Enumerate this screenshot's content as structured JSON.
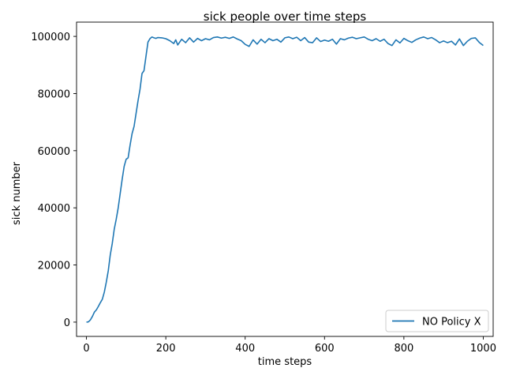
{
  "chart_data": {
    "type": "line",
    "title": "sick people over time steps",
    "xlabel": "time steps",
    "ylabel": "sick number",
    "xlim": [
      -25,
      1025
    ],
    "ylim": [
      -5000,
      105000
    ],
    "xticks": [
      0,
      200,
      400,
      600,
      800,
      1000
    ],
    "yticks": [
      0,
      20000,
      40000,
      60000,
      80000,
      100000
    ],
    "legend_position": "lower-right",
    "grid": false,
    "series": [
      {
        "name": "NO Policy X",
        "color": "#1f77b4",
        "x": [
          0,
          5,
          10,
          15,
          20,
          25,
          30,
          35,
          40,
          45,
          50,
          55,
          60,
          65,
          70,
          75,
          80,
          85,
          90,
          95,
          100,
          105,
          110,
          115,
          120,
          125,
          130,
          135,
          140,
          145,
          150,
          155,
          160,
          165,
          170,
          175,
          180,
          190,
          200,
          210,
          220,
          225,
          230,
          240,
          250,
          260,
          270,
          280,
          290,
          300,
          310,
          320,
          330,
          340,
          350,
          360,
          370,
          380,
          390,
          400,
          410,
          420,
          430,
          440,
          450,
          460,
          470,
          480,
          490,
          500,
          510,
          520,
          530,
          540,
          550,
          560,
          570,
          580,
          590,
          600,
          610,
          620,
          630,
          640,
          650,
          660,
          670,
          680,
          690,
          700,
          710,
          720,
          730,
          740,
          750,
          760,
          770,
          780,
          790,
          800,
          810,
          820,
          830,
          840,
          850,
          860,
          870,
          880,
          890,
          900,
          910,
          920,
          930,
          940,
          950,
          960,
          970,
          980,
          990,
          1000
        ],
        "y": [
          0,
          100,
          800,
          2000,
          3500,
          4300,
          5500,
          6800,
          8000,
          10500,
          14000,
          18000,
          23500,
          27500,
          32500,
          36000,
          40000,
          45000,
          50000,
          54500,
          57000,
          57500,
          62000,
          66000,
          68500,
          73000,
          77500,
          81500,
          87000,
          88000,
          93000,
          98000,
          99200,
          99800,
          99500,
          99300,
          99600,
          99500,
          99200,
          98500,
          97500,
          98800,
          97000,
          99000,
          97800,
          99500,
          98000,
          99300,
          98500,
          99200,
          98800,
          99600,
          99800,
          99400,
          99700,
          99300,
          99800,
          99100,
          98500,
          97200,
          96500,
          98800,
          97300,
          99000,
          97800,
          99200,
          98500,
          99000,
          98000,
          99500,
          99800,
          99200,
          99700,
          98500,
          99600,
          98000,
          97800,
          99500,
          98200,
          98700,
          98300,
          99000,
          97300,
          99200,
          98800,
          99400,
          99700,
          99200,
          99500,
          99800,
          99000,
          98500,
          99200,
          98300,
          99000,
          97500,
          96800,
          98800,
          97700,
          99300,
          98500,
          97900,
          98800,
          99400,
          99800,
          99200,
          99600,
          98800,
          97800,
          98400,
          97800,
          98300,
          97000,
          99100,
          96800,
          98300,
          99300,
          99500,
          97900,
          96800
        ]
      }
    ]
  }
}
